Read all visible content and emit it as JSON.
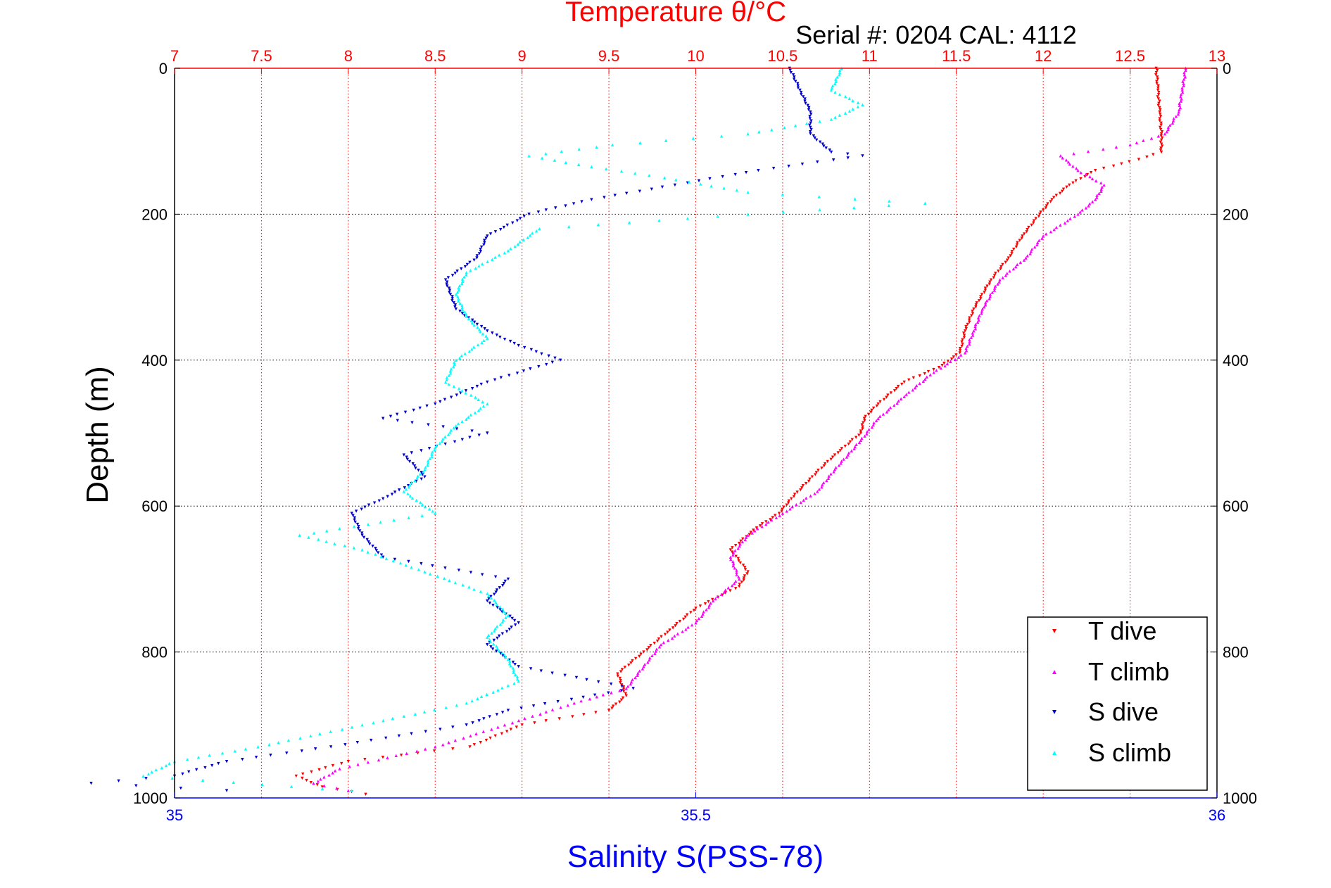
{
  "chart_data": {
    "type": "scatter",
    "title": "Temperature θ/°C",
    "subtitle": "Serial #: 0204  CAL: 4112",
    "xlabel": "Salinity S(PSS-78)",
    "ylabel": "Depth (m)",
    "temperature_axis": {
      "range": [
        7,
        13
      ],
      "ticks": [
        7,
        7.5,
        8,
        8.5,
        9,
        9.5,
        10,
        10.5,
        11,
        11.5,
        12,
        12.5,
        13
      ],
      "tick_labels": [
        "7",
        "7.5",
        "8",
        "8.5",
        "9",
        "9.5",
        "10",
        "10.5",
        "11",
        "11.5",
        "12",
        "12.5",
        "13"
      ],
      "color": "#ff0000",
      "grid": true
    },
    "salinity_axis": {
      "range": [
        35,
        36
      ],
      "ticks": [
        35,
        35.5,
        36
      ],
      "tick_labels": [
        "35",
        "35.5",
        "36"
      ],
      "color": "#0000ff"
    },
    "depth_axis": {
      "range": [
        0,
        1000
      ],
      "reversed": true,
      "ticks": [
        0,
        200,
        400,
        600,
        800,
        1000
      ],
      "tick_labels": [
        "0",
        "200",
        "400",
        "600",
        "800",
        "1000"
      ],
      "grid": true
    },
    "legend": {
      "position": "bottom-right",
      "entries": [
        "T dive",
        "T climb",
        "S dive",
        "S climb"
      ]
    },
    "series": [
      {
        "name": "T dive",
        "axis": "temperature",
        "color": "#ff0000",
        "marker": "triangle-down",
        "points": [
          [
            0,
            12.65
          ],
          [
            30,
            12.66
          ],
          [
            60,
            12.67
          ],
          [
            90,
            12.68
          ],
          [
            115,
            12.68
          ],
          [
            125,
            12.55
          ],
          [
            140,
            12.3
          ],
          [
            160,
            12.15
          ],
          [
            180,
            12.05
          ],
          [
            200,
            11.98
          ],
          [
            230,
            11.88
          ],
          [
            260,
            11.8
          ],
          [
            290,
            11.7
          ],
          [
            330,
            11.6
          ],
          [
            360,
            11.55
          ],
          [
            390,
            11.52
          ],
          [
            410,
            11.4
          ],
          [
            430,
            11.2
          ],
          [
            460,
            11.05
          ],
          [
            480,
            10.97
          ],
          [
            500,
            10.95
          ],
          [
            530,
            10.8
          ],
          [
            560,
            10.67
          ],
          [
            590,
            10.55
          ],
          [
            610,
            10.48
          ],
          [
            630,
            10.35
          ],
          [
            660,
            10.2
          ],
          [
            690,
            10.3
          ],
          [
            710,
            10.25
          ],
          [
            740,
            10.0
          ],
          [
            770,
            9.85
          ],
          [
            800,
            9.7
          ],
          [
            830,
            9.55
          ],
          [
            860,
            9.6
          ],
          [
            880,
            9.5
          ],
          [
            900,
            9.0
          ],
          [
            930,
            8.7
          ],
          [
            950,
            8.0
          ],
          [
            970,
            7.7
          ],
          [
            985,
            7.85
          ],
          [
            995,
            8.1
          ]
        ]
      },
      {
        "name": "T climb",
        "axis": "temperature",
        "color": "#ff00ff",
        "marker": "triangle-up",
        "points": [
          [
            0,
            12.82
          ],
          [
            30,
            12.8
          ],
          [
            60,
            12.78
          ],
          [
            90,
            12.7
          ],
          [
            105,
            12.5
          ],
          [
            120,
            12.1
          ],
          [
            140,
            12.2
          ],
          [
            160,
            12.35
          ],
          [
            180,
            12.3
          ],
          [
            200,
            12.2
          ],
          [
            230,
            12.0
          ],
          [
            260,
            11.9
          ],
          [
            290,
            11.75
          ],
          [
            330,
            11.65
          ],
          [
            360,
            11.6
          ],
          [
            390,
            11.55
          ],
          [
            420,
            11.35
          ],
          [
            450,
            11.2
          ],
          [
            480,
            11.05
          ],
          [
            510,
            10.95
          ],
          [
            550,
            10.8
          ],
          [
            580,
            10.7
          ],
          [
            610,
            10.5
          ],
          [
            640,
            10.3
          ],
          [
            670,
            10.2
          ],
          [
            700,
            10.25
          ],
          [
            730,
            10.1
          ],
          [
            760,
            10.0
          ],
          [
            790,
            9.8
          ],
          [
            820,
            9.7
          ],
          [
            850,
            9.6
          ],
          [
            870,
            9.3
          ],
          [
            900,
            8.9
          ],
          [
            930,
            8.5
          ],
          [
            960,
            7.95
          ],
          [
            980,
            7.8
          ],
          [
            990,
            8.0
          ]
        ]
      },
      {
        "name": "S dive",
        "axis": "salinity",
        "color": "#0000cc",
        "marker": "triangle-down",
        "points": [
          [
            0,
            35.59
          ],
          [
            30,
            35.6
          ],
          [
            60,
            35.61
          ],
          [
            90,
            35.61
          ],
          [
            115,
            35.63
          ],
          [
            120,
            35.66
          ],
          [
            140,
            35.56
          ],
          [
            160,
            35.48
          ],
          [
            180,
            35.4
          ],
          [
            200,
            35.34
          ],
          [
            230,
            35.3
          ],
          [
            260,
            35.29
          ],
          [
            290,
            35.26
          ],
          [
            330,
            35.27
          ],
          [
            360,
            35.3
          ],
          [
            380,
            35.33
          ],
          [
            400,
            35.37
          ],
          [
            430,
            35.3
          ],
          [
            460,
            35.25
          ],
          [
            480,
            35.2
          ],
          [
            500,
            35.3
          ],
          [
            530,
            35.22
          ],
          [
            560,
            35.24
          ],
          [
            590,
            35.2
          ],
          [
            610,
            35.17
          ],
          [
            640,
            35.18
          ],
          [
            670,
            35.2
          ],
          [
            700,
            35.32
          ],
          [
            730,
            35.3
          ],
          [
            760,
            35.33
          ],
          [
            790,
            35.3
          ],
          [
            820,
            35.33
          ],
          [
            850,
            35.44
          ],
          [
            880,
            35.32
          ],
          [
            900,
            35.28
          ],
          [
            930,
            35.15
          ],
          [
            950,
            35.05
          ],
          [
            970,
            35.0
          ],
          [
            980,
            34.92
          ],
          [
            990,
            35.05
          ]
        ]
      },
      {
        "name": "S climb",
        "axis": "salinity",
        "color": "#00ffff",
        "marker": "triangle-up",
        "points": [
          [
            0,
            35.64
          ],
          [
            30,
            35.63
          ],
          [
            50,
            35.66
          ],
          [
            70,
            35.63
          ],
          [
            90,
            35.55
          ],
          [
            105,
            35.42
          ],
          [
            120,
            35.34
          ],
          [
            135,
            35.4
          ],
          [
            150,
            35.47
          ],
          [
            170,
            35.55
          ],
          [
            185,
            35.72
          ],
          [
            200,
            35.55
          ],
          [
            220,
            35.35
          ],
          [
            250,
            35.32
          ],
          [
            280,
            35.28
          ],
          [
            310,
            35.27
          ],
          [
            340,
            35.28
          ],
          [
            370,
            35.3
          ],
          [
            400,
            35.27
          ],
          [
            430,
            35.26
          ],
          [
            460,
            35.3
          ],
          [
            490,
            35.27
          ],
          [
            520,
            35.25
          ],
          [
            550,
            35.24
          ],
          [
            580,
            35.22
          ],
          [
            610,
            35.25
          ],
          [
            640,
            35.12
          ],
          [
            660,
            35.18
          ],
          [
            690,
            35.24
          ],
          [
            720,
            35.3
          ],
          [
            750,
            35.32
          ],
          [
            780,
            35.3
          ],
          [
            810,
            35.32
          ],
          [
            840,
            35.33
          ],
          [
            870,
            35.28
          ],
          [
            900,
            35.18
          ],
          [
            930,
            35.08
          ],
          [
            950,
            35.0
          ],
          [
            970,
            34.97
          ],
          [
            990,
            35.17
          ]
        ]
      }
    ]
  }
}
